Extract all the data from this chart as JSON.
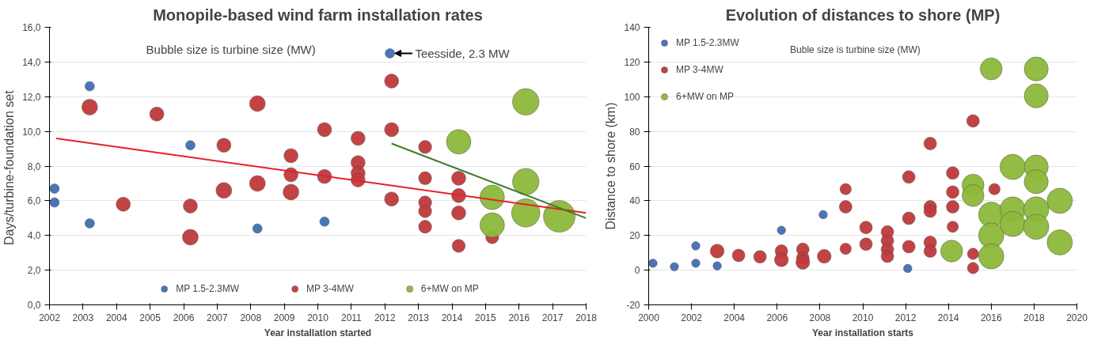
{
  "chart_data": [
    {
      "type": "bubble",
      "title": "Monopile-based wind farm installation rates",
      "xlabel": "Year installation started",
      "ylabel": "Days/turbine-foundation  set",
      "annotations": [
        "Bubble size is turbine size (MW)",
        {
          "text": "Teesside, 2.3 MW",
          "x": 2012.1,
          "y": 14.5
        }
      ],
      "xlim": [
        2002,
        2018
      ],
      "xticks": [
        2002,
        2003,
        2004,
        2005,
        2006,
        2007,
        2008,
        2009,
        2010,
        2011,
        2012,
        2013,
        2014,
        2015,
        2016,
        2017,
        2018
      ],
      "ylim": [
        0,
        16
      ],
      "yticks": [
        {
          "value": 0,
          "label": "0,0"
        },
        {
          "value": 2,
          "label": "2,0"
        },
        {
          "value": 4,
          "label": "4,0"
        },
        {
          "value": 6,
          "label": "6,0"
        },
        {
          "value": 8,
          "label": "8,0"
        },
        {
          "value": 10,
          "label": "10,0"
        },
        {
          "value": 12,
          "label": "12,0"
        },
        {
          "value": 14,
          "label": "14,0"
        },
        {
          "value": 16,
          "label": "16,0"
        }
      ],
      "grid": "y",
      "legend": "bottom",
      "series": [
        {
          "name": "MP 1.5-2.3MW",
          "color": "#3f6fb5",
          "x": [
            2002.15,
            2002.15,
            2003.2,
            2003.2,
            2006.2,
            2008.2,
            2010.2,
            2012.15
          ],
          "values": [
            6.7,
            5.9,
            12.6,
            4.7,
            9.2,
            4.4,
            4.8,
            14.5
          ],
          "sizes": [
            0.09,
            0.09,
            0.09,
            0.09,
            0.09,
            0.09,
            0.09,
            0.09
          ]
        },
        {
          "name": "MP 3-4MW",
          "color": "#c0393b",
          "x": [
            2003.2,
            2004.2,
            2005.2,
            2006.2,
            2006.2,
            2007.2,
            2007.2,
            2008.2,
            2008.2,
            2009.2,
            2009.2,
            2009.2,
            2010.2,
            2010.2,
            2011.2,
            2011.2,
            2011.2,
            2011.2,
            2012.2,
            2012.2,
            2012.2,
            2013.2,
            2013.2,
            2013.2,
            2013.2,
            2013.2,
            2014.2,
            2014.2,
            2014.2,
            2014.2,
            2015.2
          ],
          "values": [
            11.4,
            5.8,
            11.0,
            5.7,
            3.9,
            9.2,
            6.6,
            11.6,
            7.0,
            8.6,
            7.5,
            6.5,
            10.1,
            7.4,
            9.6,
            8.2,
            7.6,
            7.2,
            12.9,
            10.1,
            6.1,
            9.1,
            7.3,
            5.9,
            5.4,
            4.5,
            7.3,
            6.3,
            5.3,
            3.4,
            3.9
          ],
          "sizes": [
            0.25,
            0.2,
            0.2,
            0.2,
            0.25,
            0.2,
            0.25,
            0.25,
            0.25,
            0.2,
            0.2,
            0.25,
            0.2,
            0.2,
            0.2,
            0.2,
            0.2,
            0.2,
            0.2,
            0.2,
            0.2,
            0.17,
            0.17,
            0.17,
            0.17,
            0.17,
            0.2,
            0.2,
            0.2,
            0.17,
            0.17
          ]
        },
        {
          "name": "6+MW on MP",
          "color": "#8db83a",
          "x": [
            2014.2,
            2015.2,
            2015.2,
            2016.2,
            2016.2,
            2016.2,
            2017.2
          ],
          "values": [
            9.4,
            6.2,
            4.6,
            11.7,
            7.1,
            5.3,
            5.1
          ],
          "sizes": [
            0.6,
            0.6,
            0.6,
            0.7,
            0.7,
            0.8,
            1
          ]
        },
        {
          "type": "line",
          "color": "#e8202a",
          "x": [
            2002.2,
            2018
          ],
          "values": [
            9.6,
            5.3
          ]
        },
        {
          "type": "line",
          "color": "#3f7a2a",
          "x": [
            2012.2,
            2018
          ],
          "values": [
            9.3,
            5.0
          ]
        }
      ]
    },
    {
      "type": "bubble",
      "title": "Evolution of distances to shore (MP)",
      "xlabel": "Year installation starts",
      "ylabel": "Distance to shore (km)",
      "annotations": [
        "Buble size is turbine size (MW)"
      ],
      "xlim": [
        2000,
        2020
      ],
      "xticks": [
        2000,
        2002,
        2004,
        2006,
        2008,
        2010,
        2012,
        2014,
        2016,
        2018,
        2020
      ],
      "ylim": [
        -20,
        140
      ],
      "yticks": [
        -20,
        0,
        20,
        40,
        60,
        80,
        100,
        120,
        140
      ],
      "grid": "y",
      "legend": "top left",
      "series": [
        {
          "name": "MP 1.5-2.3MW",
          "color": "#3f6fb5",
          "x": [
            2000.2,
            2001.2,
            2002.2,
            2002.2,
            2003.2,
            2006.2,
            2008.15,
            2012.1
          ],
          "values": [
            4,
            2,
            14,
            4,
            2.5,
            23,
            32,
            1
          ],
          "sizes": [
            0.11,
            0.11,
            0.11,
            0.11,
            0.11,
            0.11,
            0.11,
            0.11
          ]
        },
        {
          "name": "MP 3-4MW",
          "color": "#c0393b",
          "x": [
            2003.2,
            2004.2,
            2005.2,
            2006.2,
            2006.2,
            2007.2,
            2007.2,
            2007.2,
            2008.2,
            2009.2,
            2009.2,
            2009.2,
            2010.15,
            2010.15,
            2011.15,
            2011.15,
            2011.15,
            2011.15,
            2012.15,
            2012.15,
            2012.15,
            2013.15,
            2013.15,
            2013.15,
            2013.15,
            2013.15,
            2014.2,
            2014.2,
            2014.2,
            2014.2,
            2015.15,
            2015.15,
            2015.15,
            2016.15
          ],
          "values": [
            11,
            8.5,
            7.7,
            11,
            6,
            12,
            7,
            4.5,
            8,
            46.7,
            36.5,
            12.3,
            24.6,
            15,
            22,
            17,
            12,
            8,
            53.7,
            29.9,
            13.5,
            73,
            36.5,
            34,
            16,
            11,
            56,
            45,
            36.5,
            25,
            86,
            9.4,
            1.2,
            46.7
          ],
          "sizes": [
            0.3,
            0.25,
            0.25,
            0.25,
            0.3,
            0.25,
            0.25,
            0.3,
            0.3,
            0.2,
            0.25,
            0.2,
            0.25,
            0.25,
            0.25,
            0.25,
            0.25,
            0.25,
            0.25,
            0.25,
            0.25,
            0.25,
            0.25,
            0.25,
            0.25,
            0.25,
            0.25,
            0.25,
            0.25,
            0.2,
            0.25,
            0.2,
            0.2,
            0.2
          ]
        },
        {
          "name": "6+MW on MP",
          "color": "#8db83a",
          "x": [
            2014.15,
            2015.15,
            2015.15,
            2016.0,
            2016.0,
            2016.0,
            2016.0,
            2017.0,
            2017.0,
            2017.0,
            2018.1,
            2018.1,
            2018.1,
            2018.1,
            2018.1,
            2018.1,
            2019.2,
            2019.2
          ],
          "values": [
            11,
            49,
            43,
            116,
            32,
            20,
            8,
            59.5,
            35,
            26.6,
            116,
            100.5,
            59.5,
            51,
            35,
            25,
            40,
            16
          ],
          "sizes": [
            0.75,
            0.75,
            0.75,
            0.75,
            1,
            1,
            1,
            1,
            1,
            1,
            0.9,
            0.9,
            0.9,
            0.9,
            1,
            1,
            1,
            1
          ]
        }
      ]
    }
  ]
}
